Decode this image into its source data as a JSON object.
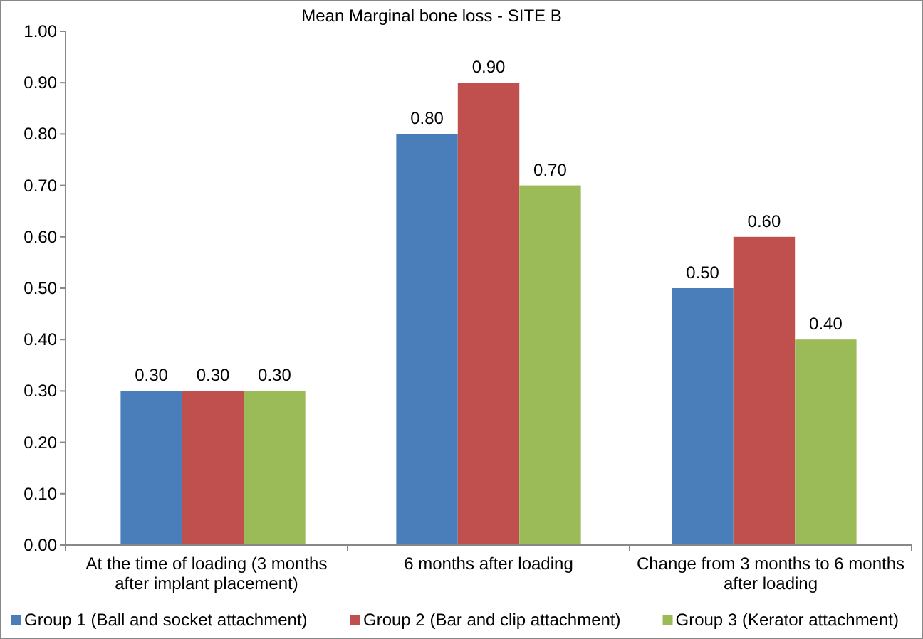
{
  "chart_data": {
    "type": "bar",
    "title": "Mean Marginal bone loss  - SITE B",
    "categories": [
      "At the time of loading (3 months after implant placement)",
      "6 months after loading",
      "Change from 3 months to 6 months after loading"
    ],
    "series": [
      {
        "name": "Group 1 (Ball and socket attachment)",
        "color": "#4a7ebb",
        "values": [
          0.3,
          0.8,
          0.5
        ],
        "value_labels": [
          "0.30",
          "0.80",
          "0.50"
        ]
      },
      {
        "name": "Group 2 (Bar and clip attachment)",
        "color": "#c0504d",
        "values": [
          0.3,
          0.9,
          0.6
        ],
        "value_labels": [
          "0.30",
          "0.90",
          "0.60"
        ]
      },
      {
        "name": "Group 3 (Kerator attachment)",
        "color": "#9bbb59",
        "values": [
          0.3,
          0.7,
          0.4
        ],
        "value_labels": [
          "0.30",
          "0.70",
          "0.40"
        ]
      }
    ],
    "ylim": [
      0,
      1
    ],
    "yticks": [
      {
        "value": 0,
        "label": "0.00"
      },
      {
        "value": 0.1,
        "label": "0.10"
      },
      {
        "value": 0.2,
        "label": "0.20"
      },
      {
        "value": 0.3,
        "label": "0.30"
      },
      {
        "value": 0.4,
        "label": "0.40"
      },
      {
        "value": 0.5,
        "label": "0.50"
      },
      {
        "value": 0.6,
        "label": "0.60"
      },
      {
        "value": 0.7,
        "label": "0.70"
      },
      {
        "value": 0.8,
        "label": "0.80"
      },
      {
        "value": 0.9,
        "label": "0.90"
      },
      {
        "value": 1,
        "label": "1.00"
      }
    ],
    "grid": false,
    "legend": "bottom"
  }
}
